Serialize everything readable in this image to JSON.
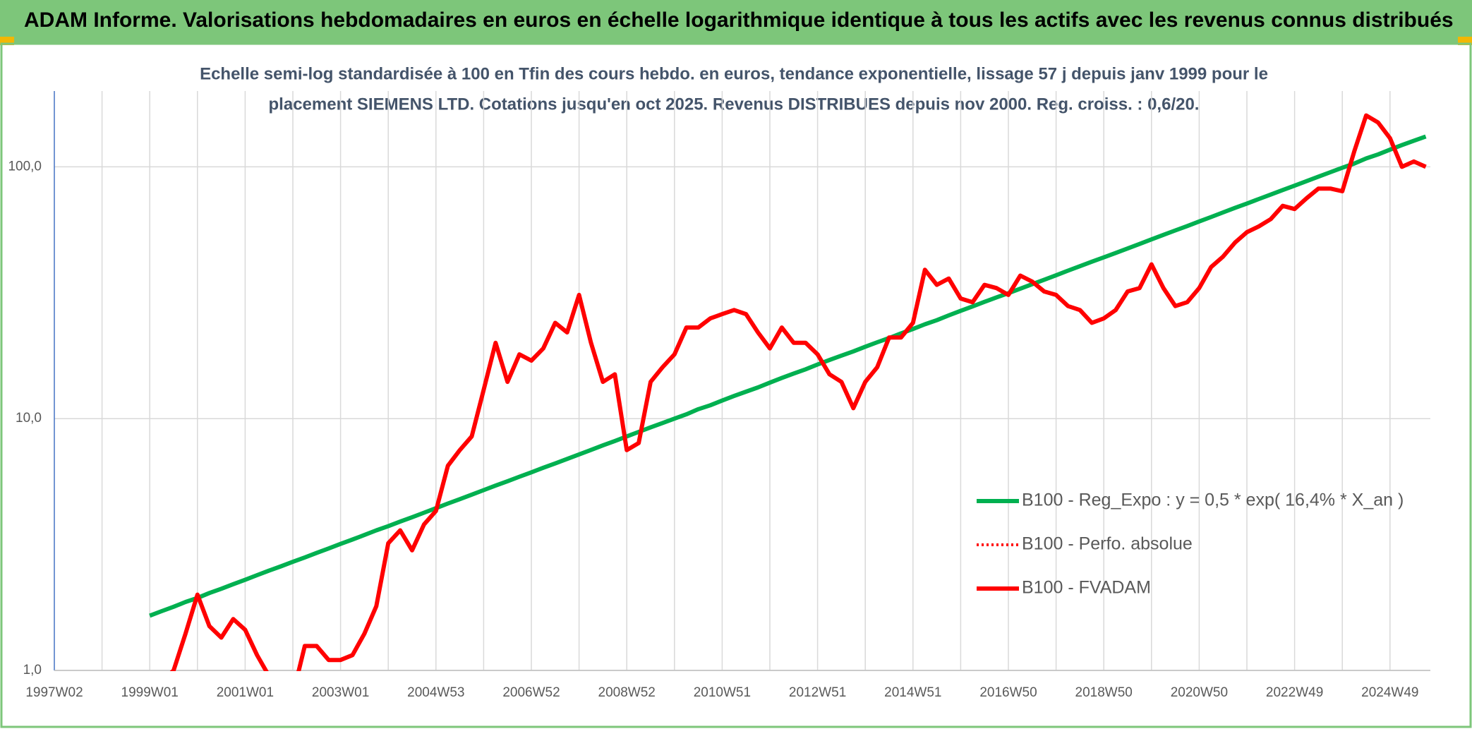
{
  "header": {
    "title": "ADAM Informe. Valorisations hebdomadaires en euros en échelle logarithmique identique à tous les actifs avec les revenus connus distribués"
  },
  "chart_data": {
    "type": "line",
    "subtitle": [
      "Echelle semi-log standardisée à 100 en Tfin des cours hebdo. en euros, tendance exponentielle, lissage 57 j depuis janv 1999 pour le",
      "placement SIEMENS LTD. Cotations jusqu'en oct 2025. Revenus DISTRIBUES depuis nov 2000. Reg. croiss. : 0,6/20."
    ],
    "categories": [
      "1997W02",
      null,
      null,
      null,
      null,
      null,
      null,
      null,
      "1999W01",
      null,
      null,
      null,
      null,
      null,
      null,
      null,
      "2001W01",
      null,
      null,
      null,
      null,
      null,
      null,
      null,
      "2003W01",
      null,
      null,
      null,
      null,
      null,
      null,
      null,
      "2004W53",
      null,
      null,
      null,
      null,
      null,
      null,
      null,
      "2006W52",
      null,
      null,
      null,
      null,
      null,
      null,
      null,
      "2008W52",
      null,
      null,
      null,
      null,
      null,
      null,
      null,
      "2010W51",
      null,
      null,
      null,
      null,
      null,
      null,
      null,
      "2012W51",
      null,
      null,
      null,
      null,
      null,
      null,
      null,
      "2014W51",
      null,
      null,
      null,
      null,
      null,
      null,
      null,
      "2016W50",
      null,
      null,
      null,
      null,
      null,
      null,
      null,
      "2018W50",
      null,
      null,
      null,
      null,
      null,
      null,
      null,
      "2020W50",
      null,
      null,
      null,
      null,
      null,
      null,
      null,
      "2022W49",
      null,
      null,
      null,
      null,
      null,
      null,
      null,
      "2024W49",
      null,
      null,
      null
    ],
    "log_scale": true,
    "grid": true,
    "ylim": [
      1,
      200
    ],
    "yticks": [
      {
        "value": 1,
        "label": "1,0"
      },
      {
        "value": 10,
        "label": "10,0"
      },
      {
        "value": 100,
        "label": "100,0"
      }
    ],
    "legend": "right",
    "series": [
      {
        "name": "B100 - Reg_Expo : y = 0,5 * exp( 16,4% *  X_an )",
        "color": "#00b050",
        "values": [
          null,
          null,
          null,
          null,
          null,
          null,
          null,
          null,
          1.65,
          1.72,
          1.79,
          1.87,
          1.94,
          2.03,
          2.11,
          2.2,
          2.29,
          2.39,
          2.49,
          2.59,
          2.7,
          2.81,
          2.93,
          3.05,
          3.18,
          3.31,
          3.45,
          3.6,
          3.74,
          3.9,
          4.06,
          4.23,
          4.41,
          4.6,
          4.79,
          4.99,
          5.2,
          5.42,
          5.64,
          5.88,
          6.12,
          6.38,
          6.64,
          6.92,
          7.21,
          7.51,
          7.83,
          8.15,
          8.5,
          8.86,
          9.23,
          9.61,
          10.0,
          10.4,
          10.9,
          11.3,
          11.8,
          12.3,
          12.8,
          13.3,
          13.9,
          14.5,
          15.1,
          15.7,
          16.4,
          17.1,
          17.8,
          18.5,
          19.3,
          20.1,
          20.9,
          21.8,
          22.7,
          23.7,
          24.6,
          25.7,
          26.8,
          27.9,
          29.1,
          30.3,
          31.5,
          32.8,
          34.2,
          35.6,
          37.1,
          38.7,
          40.3,
          42.0,
          43.7,
          45.5,
          47.4,
          49.4,
          51.5,
          53.7,
          55.9,
          58.2,
          60.7,
          63.2,
          65.9,
          68.7,
          71.5,
          74.5,
          77.6,
          80.9,
          84.2,
          87.7,
          91.4,
          95.2,
          99.2,
          103,
          108,
          112,
          117,
          122,
          127,
          132
        ]
      },
      {
        "name": "B100 - Perfo. absolue",
        "color": "#ff0000",
        "dashed": true,
        "values": [
          null,
          null,
          null,
          null,
          null,
          null,
          null,
          null,
          0.9,
          0.9,
          1.0,
          1.4,
          2.0,
          1.5,
          1.35,
          1.6,
          1.45,
          1.15,
          0.95,
          0.7,
          0.8,
          1.25,
          1.25,
          1.1,
          1.1,
          1.15,
          1.4,
          1.8,
          3.2,
          3.6,
          3.0,
          3.8,
          4.3,
          6.5,
          7.5,
          8.5,
          13,
          20,
          14,
          18,
          17,
          19,
          24,
          22,
          31,
          20,
          14,
          15,
          7.5,
          8,
          14,
          16,
          18,
          23,
          23,
          25,
          26,
          27,
          26,
          22,
          19,
          23,
          20,
          20,
          18,
          15,
          14,
          11,
          14,
          16,
          21,
          21,
          24,
          39,
          34,
          36,
          30,
          29,
          34,
          33,
          31,
          37,
          35,
          32,
          31,
          28,
          27,
          24,
          25,
          27,
          32,
          33,
          41,
          33,
          28,
          29,
          33,
          40,
          44,
          50,
          55,
          58,
          62,
          70,
          68,
          75,
          82,
          82,
          80,
          115,
          160,
          150,
          130,
          100,
          105,
          100
        ]
      },
      {
        "name": "B100 - FVADAM",
        "color": "#ff0000",
        "values": [
          null,
          null,
          null,
          null,
          null,
          null,
          null,
          null,
          0.9,
          0.9,
          1.0,
          1.4,
          2.0,
          1.5,
          1.35,
          1.6,
          1.45,
          1.15,
          0.95,
          0.7,
          0.8,
          1.25,
          1.25,
          1.1,
          1.1,
          1.15,
          1.4,
          1.8,
          3.2,
          3.6,
          3.0,
          3.8,
          4.3,
          6.5,
          7.5,
          8.5,
          13,
          20,
          14,
          18,
          17,
          19,
          24,
          22,
          31,
          20,
          14,
          15,
          7.5,
          8,
          14,
          16,
          18,
          23,
          23,
          25,
          26,
          27,
          26,
          22,
          19,
          23,
          20,
          20,
          18,
          15,
          14,
          11,
          14,
          16,
          21,
          21,
          24,
          39,
          34,
          36,
          30,
          29,
          34,
          33,
          31,
          37,
          35,
          32,
          31,
          28,
          27,
          24,
          25,
          27,
          32,
          33,
          41,
          33,
          28,
          29,
          33,
          40,
          44,
          50,
          55,
          58,
          62,
          70,
          68,
          75,
          82,
          82,
          80,
          115,
          160,
          150,
          130,
          100,
          105,
          100
        ]
      }
    ]
  }
}
